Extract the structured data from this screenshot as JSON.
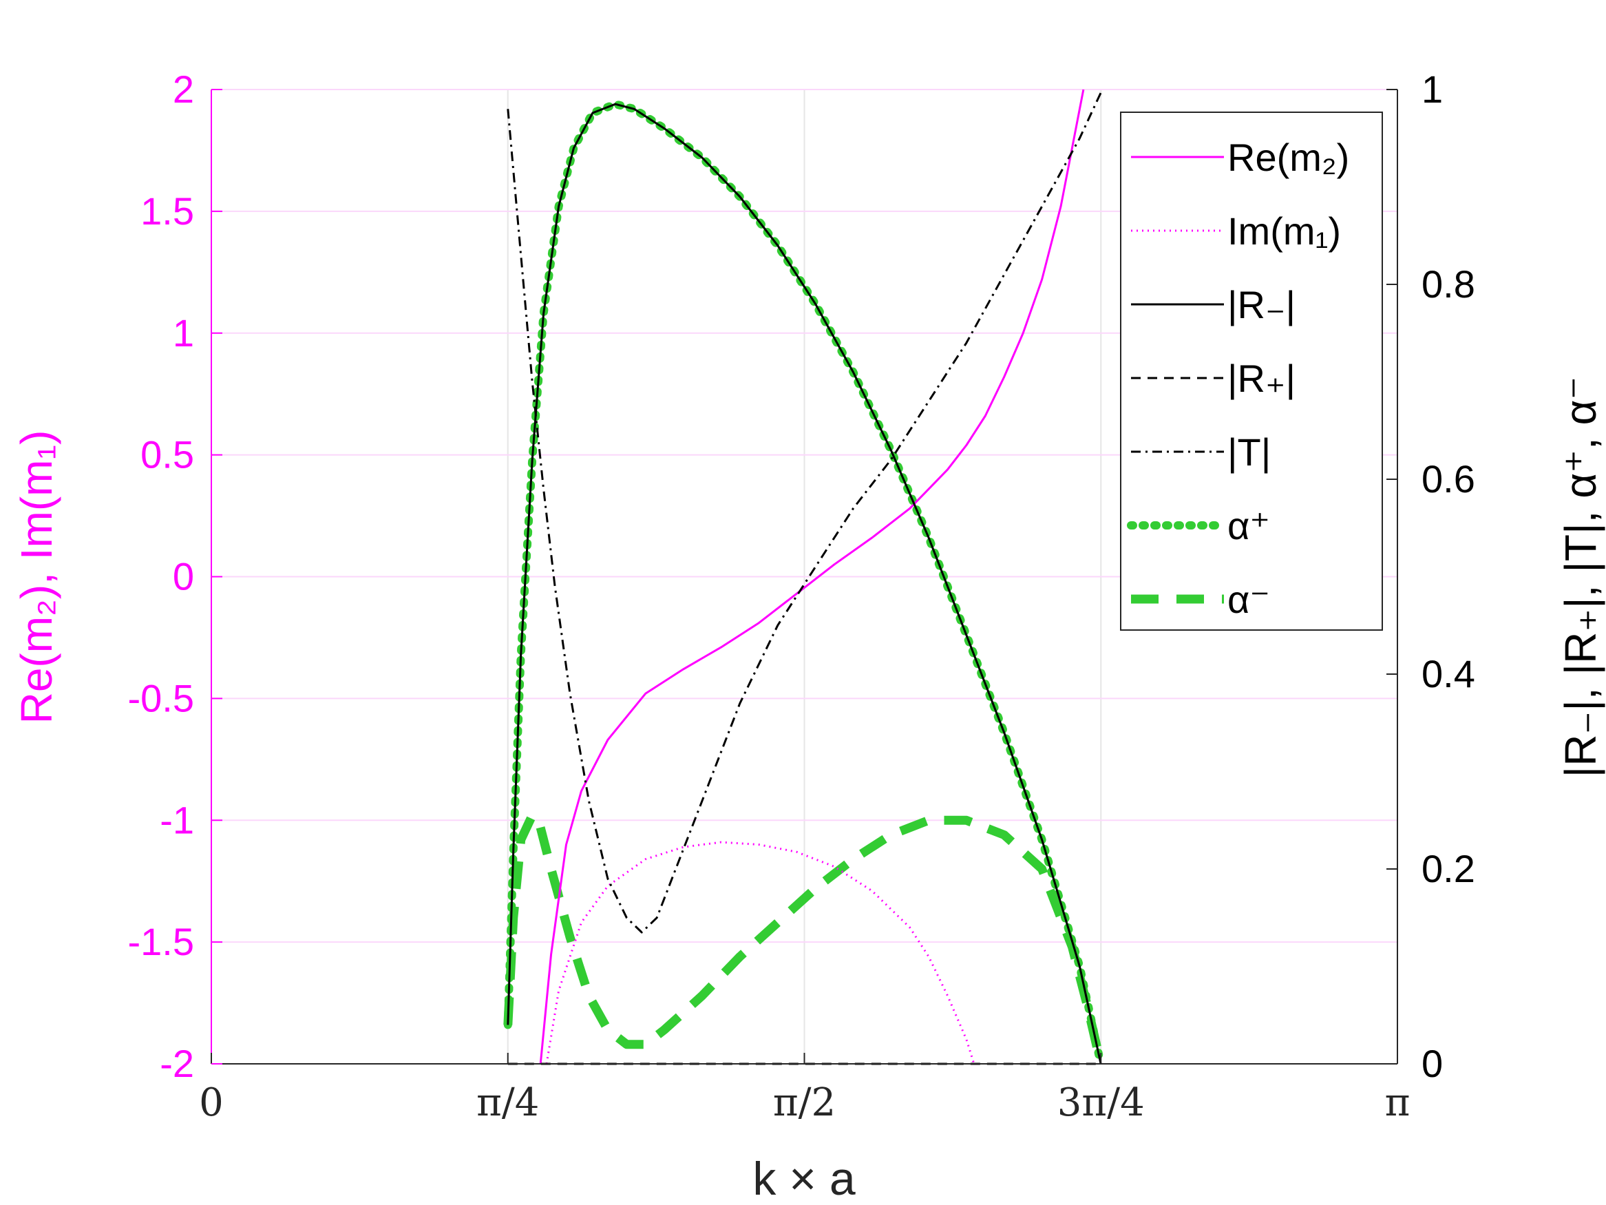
{
  "chart_data": {
    "type": "line",
    "xlabel": "k × a",
    "ylabel_left": "Re(m₂), Im(m₁)",
    "ylabel_right": "|R₋|, |R₊|, |T|, α⁺, α⁻",
    "xlim": [
      0,
      3.14159
    ],
    "ylim_left": [
      -2,
      2
    ],
    "ylim_right": [
      0,
      1
    ],
    "grid": true,
    "legend_position": "top-right",
    "x_ticks": [
      {
        "value": 0,
        "label": "0"
      },
      {
        "value": 0.7854,
        "label": "π/4"
      },
      {
        "value": 1.5708,
        "label": "π/2"
      },
      {
        "value": 2.3562,
        "label": "3π/4"
      },
      {
        "value": 3.1416,
        "label": "π"
      }
    ],
    "y_left_ticks": [
      {
        "value": 2,
        "label": "2"
      },
      {
        "value": 1.5,
        "label": "1.5"
      },
      {
        "value": 1,
        "label": "1"
      },
      {
        "value": 0.5,
        "label": "0.5"
      },
      {
        "value": 0,
        "label": "0"
      },
      {
        "value": -0.5,
        "label": "-0.5"
      },
      {
        "value": -1,
        "label": "-1"
      },
      {
        "value": -1.5,
        "label": "-1.5"
      },
      {
        "value": -2,
        "label": "-2"
      }
    ],
    "y_right_ticks": [
      {
        "value": 1,
        "label": "1"
      },
      {
        "value": 0.8,
        "label": "0.8"
      },
      {
        "value": 0.6,
        "label": "0.6"
      },
      {
        "value": 0.4,
        "label": "0.4"
      },
      {
        "value": 0.2,
        "label": "0.2"
      },
      {
        "value": 0,
        "label": "0"
      }
    ],
    "series": [
      {
        "name": "Re(m₂)",
        "axis": "left",
        "color": "#ff00ff",
        "style": "solid",
        "points": [
          [
            0.872,
            -2.0
          ],
          [
            0.9,
            -1.55
          ],
          [
            0.94,
            -1.1
          ],
          [
            0.98,
            -0.88
          ],
          [
            1.05,
            -0.67
          ],
          [
            1.15,
            -0.48
          ],
          [
            1.25,
            -0.38
          ],
          [
            1.35,
            -0.29
          ],
          [
            1.45,
            -0.19
          ],
          [
            1.55,
            -0.07
          ],
          [
            1.65,
            0.05
          ],
          [
            1.75,
            0.16
          ],
          [
            1.85,
            0.28
          ],
          [
            1.9,
            0.36
          ],
          [
            1.95,
            0.44
          ],
          [
            2.0,
            0.54
          ],
          [
            2.05,
            0.66
          ],
          [
            2.1,
            0.82
          ],
          [
            2.15,
            1.0
          ],
          [
            2.2,
            1.22
          ],
          [
            2.25,
            1.52
          ],
          [
            2.3,
            1.92
          ],
          [
            2.31,
            2.0
          ]
        ]
      },
      {
        "name": "Im(m₁)",
        "axis": "left",
        "color": "#ff00ff",
        "style": "dotted",
        "points": [
          [
            0.888,
            -2.0
          ],
          [
            0.92,
            -1.7
          ],
          [
            0.98,
            -1.42
          ],
          [
            1.05,
            -1.27
          ],
          [
            1.15,
            -1.16
          ],
          [
            1.25,
            -1.11
          ],
          [
            1.35,
            -1.09
          ],
          [
            1.45,
            -1.1
          ],
          [
            1.55,
            -1.13
          ],
          [
            1.65,
            -1.19
          ],
          [
            1.75,
            -1.29
          ],
          [
            1.85,
            -1.44
          ],
          [
            1.9,
            -1.56
          ],
          [
            1.95,
            -1.72
          ],
          [
            2.0,
            -1.9
          ],
          [
            2.02,
            -2.0
          ]
        ]
      },
      {
        "name": "|R₋|",
        "axis": "right",
        "color": "#000000",
        "style": "solid",
        "points": [
          [
            0.7854,
            0.04
          ],
          [
            0.8,
            0.22
          ],
          [
            0.82,
            0.42
          ],
          [
            0.85,
            0.62
          ],
          [
            0.88,
            0.77
          ],
          [
            0.92,
            0.88
          ],
          [
            0.96,
            0.94
          ],
          [
            1.01,
            0.976
          ],
          [
            1.07,
            0.985
          ],
          [
            1.12,
            0.98
          ],
          [
            1.2,
            0.96
          ],
          [
            1.3,
            0.93
          ],
          [
            1.4,
            0.89
          ],
          [
            1.5,
            0.84
          ],
          [
            1.6,
            0.78
          ],
          [
            1.7,
            0.71
          ],
          [
            1.8,
            0.63
          ],
          [
            1.9,
            0.54
          ],
          [
            2.0,
            0.44
          ],
          [
            2.1,
            0.34
          ],
          [
            2.2,
            0.23
          ],
          [
            2.3,
            0.1
          ],
          [
            2.356,
            0.0
          ]
        ]
      },
      {
        "name": "|R₊|",
        "axis": "right",
        "color": "#000000",
        "style": "dashed",
        "points": [
          [
            0.7854,
            0.0
          ],
          [
            2.356,
            0.0
          ]
        ]
      },
      {
        "name": "|T|",
        "axis": "right",
        "color": "#000000",
        "style": "dashdot",
        "points": [
          [
            0.7854,
            0.98
          ],
          [
            0.82,
            0.83
          ],
          [
            0.85,
            0.7
          ],
          [
            0.88,
            0.59
          ],
          [
            0.91,
            0.49
          ],
          [
            0.95,
            0.38
          ],
          [
            1.0,
            0.27
          ],
          [
            1.05,
            0.19
          ],
          [
            1.1,
            0.15
          ],
          [
            1.14,
            0.135
          ],
          [
            1.18,
            0.15
          ],
          [
            1.22,
            0.19
          ],
          [
            1.3,
            0.27
          ],
          [
            1.4,
            0.37
          ],
          [
            1.5,
            0.45
          ],
          [
            1.6,
            0.51
          ],
          [
            1.7,
            0.57
          ],
          [
            1.8,
            0.62
          ],
          [
            1.9,
            0.68
          ],
          [
            2.0,
            0.74
          ],
          [
            2.1,
            0.81
          ],
          [
            2.2,
            0.88
          ],
          [
            2.3,
            0.95
          ],
          [
            2.36,
            1.0
          ]
        ]
      },
      {
        "name": "α⁺",
        "axis": "right",
        "color": "#33cc33",
        "style": "dotted",
        "points": [
          [
            0.7854,
            0.04
          ],
          [
            0.8,
            0.22
          ],
          [
            0.82,
            0.42
          ],
          [
            0.85,
            0.62
          ],
          [
            0.88,
            0.77
          ],
          [
            0.92,
            0.88
          ],
          [
            0.96,
            0.94
          ],
          [
            1.01,
            0.976
          ],
          [
            1.07,
            0.985
          ],
          [
            1.12,
            0.98
          ],
          [
            1.2,
            0.96
          ],
          [
            1.3,
            0.93
          ],
          [
            1.4,
            0.89
          ],
          [
            1.5,
            0.84
          ],
          [
            1.6,
            0.78
          ],
          [
            1.7,
            0.71
          ],
          [
            1.8,
            0.63
          ],
          [
            1.9,
            0.54
          ],
          [
            2.0,
            0.44
          ],
          [
            2.1,
            0.34
          ],
          [
            2.2,
            0.23
          ],
          [
            2.3,
            0.1
          ],
          [
            2.356,
            0.0
          ]
        ]
      },
      {
        "name": "α⁻",
        "axis": "right",
        "color": "#33cc33",
        "style": "dashed",
        "points": [
          [
            0.7854,
            0.04
          ],
          [
            0.8,
            0.15
          ],
          [
            0.82,
            0.23
          ],
          [
            0.85,
            0.255
          ],
          [
            0.87,
            0.245
          ],
          [
            0.9,
            0.2
          ],
          [
            0.95,
            0.13
          ],
          [
            1.0,
            0.07
          ],
          [
            1.05,
            0.035
          ],
          [
            1.1,
            0.02
          ],
          [
            1.15,
            0.02
          ],
          [
            1.2,
            0.035
          ],
          [
            1.3,
            0.07
          ],
          [
            1.4,
            0.11
          ],
          [
            1.5,
            0.145
          ],
          [
            1.6,
            0.18
          ],
          [
            1.7,
            0.21
          ],
          [
            1.8,
            0.235
          ],
          [
            1.9,
            0.25
          ],
          [
            2.0,
            0.25
          ],
          [
            2.1,
            0.235
          ],
          [
            2.2,
            0.2
          ],
          [
            2.28,
            0.12
          ],
          [
            2.32,
            0.06
          ],
          [
            2.356,
            0.0
          ]
        ]
      }
    ]
  }
}
